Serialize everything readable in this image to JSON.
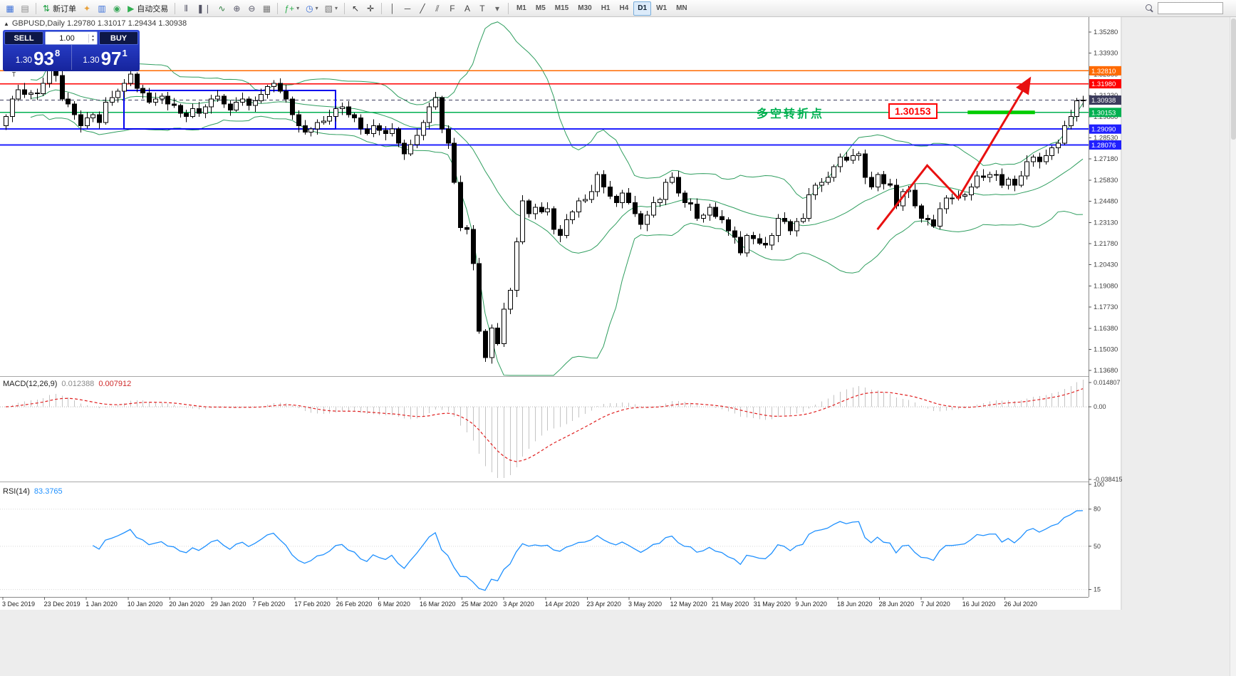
{
  "toolbar": {
    "groups": [
      {
        "items": [
          {
            "name": "new-chart-button",
            "glyph": "▦",
            "color": "#3a6fd8"
          },
          {
            "name": "profiles-button",
            "glyph": "▤",
            "color": "#8a8a8a"
          }
        ]
      },
      {
        "sep": true
      },
      {
        "items": [
          {
            "name": "new-order-button",
            "glyph": "⇅",
            "color": "#1a9e3f",
            "label": "新订单"
          }
        ]
      },
      {
        "items": [
          {
            "name": "navigator-button",
            "glyph": "✦",
            "color": "#e8a13a"
          },
          {
            "name": "terminal-button",
            "glyph": "▥",
            "color": "#3a6fd8"
          },
          {
            "name": "mql5-community-button",
            "glyph": "◉",
            "color": "#3aa85a"
          }
        ]
      },
      {
        "items": [
          {
            "name": "autotrading-button",
            "glyph": "▶",
            "color": "#2fae4f",
            "label": "自动交易"
          }
        ]
      },
      {
        "sep": true
      },
      {
        "items": [
          {
            "name": "bar-chart-button",
            "glyph": "⫴",
            "color": "#556"
          },
          {
            "name": "candlestick-chart-button",
            "glyph": "❚❘",
            "color": "#556"
          },
          {
            "name": "line-chart-button",
            "glyph": "∿",
            "color": "#2f7e3f"
          }
        ]
      },
      {
        "items": [
          {
            "name": "zoom-in-button",
            "glyph": "⊕",
            "color": "#556"
          },
          {
            "name": "zoom-out-button",
            "glyph": "⊖",
            "color": "#556"
          }
        ]
      },
      {
        "items": [
          {
            "name": "tile-windows-button",
            "glyph": "▦",
            "color": "#777"
          }
        ]
      },
      {
        "sep": true
      },
      {
        "items": [
          {
            "name": "indicators-button",
            "glyph": "ƒ+",
            "color": "#2fae4f",
            "dropdown": true
          },
          {
            "name": "periods-button",
            "glyph": "◷",
            "color": "#3a6fd8",
            "dropdown": true
          },
          {
            "name": "templates-button",
            "glyph": "▧",
            "color": "#777",
            "dropdown": true
          }
        ]
      },
      {
        "sep": true
      },
      {
        "items": [
          {
            "name": "cursor-button",
            "glyph": "↖",
            "color": "#333"
          },
          {
            "name": "crosshair-button",
            "glyph": "✛",
            "color": "#333"
          }
        ]
      },
      {
        "sep": true
      },
      {
        "items": [
          {
            "name": "vertical-line-button",
            "glyph": "│",
            "color": "#444"
          },
          {
            "name": "horizontal-line-button",
            "glyph": "─",
            "color": "#444"
          },
          {
            "name": "trendline-button",
            "glyph": "╱",
            "color": "#444"
          },
          {
            "name": "equidistant-channel-button",
            "glyph": "⫽",
            "color": "#444"
          },
          {
            "name": "fibonacci-button",
            "glyph": "F",
            "color": "#444"
          },
          {
            "name": "text-button",
            "glyph": "A",
            "color": "#444"
          },
          {
            "name": "arrow-label-button",
            "glyph": "T",
            "color": "#444"
          },
          {
            "name": "shapes-dropdown-button",
            "glyph": "▾",
            "color": "#666"
          }
        ]
      },
      {
        "sep": true
      },
      {
        "timeframes": true
      }
    ],
    "timeframes": [
      "M1",
      "M5",
      "M15",
      "M30",
      "H1",
      "H4",
      "D1",
      "W1",
      "MN"
    ],
    "active_timeframe": "D1"
  },
  "trade_panel": {
    "sell_label": "SELL",
    "buy_label": "BUY",
    "volume": "1.00",
    "bid": {
      "prefix": "1.30",
      "big": "93",
      "sup": "8"
    },
    "ask": {
      "prefix": "1.30",
      "big": "97",
      "sup": "1"
    }
  },
  "chart": {
    "symbol_label": "GBPUSD,Daily  1.29780 1.31017 1.29434 1.30938",
    "macd_label": "MACD(12,26,9)",
    "macd_value": "0.012388",
    "macd_signal_value": "0.007912",
    "rsi_label": "RSI(14)",
    "rsi_value": "83.3765",
    "annotation_text": "多空转折点",
    "callout_price": "1.30153"
  },
  "chart_data": {
    "type": "candlestick",
    "symbol": "GBPUSD",
    "timeframe": "Daily",
    "ohlc_display": {
      "open": "1.29780",
      "high": "1.31017",
      "low": "1.29434",
      "close": "1.30938"
    },
    "first_open": 1.293,
    "closes": [
      1.299,
      1.31,
      1.316,
      1.313,
      1.314,
      1.3135,
      1.32,
      1.333,
      1.325,
      1.31,
      1.307,
      1.3,
      1.293,
      1.298,
      1.3,
      1.295,
      1.308,
      1.311,
      1.315,
      1.32,
      1.326,
      1.317,
      1.314,
      1.308,
      1.31,
      1.312,
      1.307,
      1.306,
      1.301,
      1.299,
      1.304,
      1.301,
      1.305,
      1.31,
      1.312,
      1.307,
      1.303,
      1.308,
      1.31,
      1.306,
      1.309,
      1.313,
      1.318,
      1.32,
      1.315,
      1.31,
      1.3,
      1.293,
      1.289,
      1.291,
      1.295,
      1.296,
      1.299,
      1.304,
      1.305,
      1.3,
      1.298,
      1.291,
      1.288,
      1.293,
      1.29,
      1.288,
      1.291,
      1.282,
      1.275,
      1.281,
      1.287,
      1.295,
      1.305,
      1.311,
      1.291,
      1.282,
      1.257,
      1.228,
      1.227,
      1.205,
      1.162,
      1.145,
      1.164,
      1.154,
      1.176,
      1.188,
      1.219,
      1.245,
      1.237,
      1.241,
      1.238,
      1.24,
      1.227,
      1.223,
      1.233,
      1.238,
      1.245,
      1.246,
      1.251,
      1.262,
      1.254,
      1.248,
      1.244,
      1.25,
      1.244,
      1.237,
      1.23,
      1.236,
      1.244,
      1.246,
      1.257,
      1.26,
      1.25,
      1.244,
      1.243,
      1.234,
      1.236,
      1.241,
      1.235,
      1.233,
      1.226,
      1.222,
      1.212,
      1.223,
      1.221,
      1.218,
      1.217,
      1.223,
      1.234,
      1.232,
      1.226,
      1.232,
      1.234,
      1.249,
      1.255,
      1.257,
      1.26,
      1.267,
      1.273,
      1.271,
      1.274,
      1.275,
      1.26,
      1.254,
      1.262,
      1.256,
      1.255,
      1.242,
      1.251,
      1.252,
      1.242,
      1.234,
      1.233,
      1.229,
      1.24,
      1.247,
      1.247,
      1.248,
      1.249,
      1.254,
      1.261,
      1.26,
      1.262,
      1.262,
      1.255,
      1.259,
      1.255,
      1.261,
      1.27,
      1.273,
      1.27,
      1.274,
      1.279,
      1.282,
      1.293,
      1.299,
      1.309,
      1.3094
    ],
    "x_labels": [
      "3 Dec 2019",
      "23 Dec 2019",
      "1 Jan 2020",
      "10 Jan 2020",
      "20 Jan 2020",
      "29 Jan 2020",
      "7 Feb 2020",
      "17 Feb 2020",
      "26 Feb 2020",
      "6 Mar 2020",
      "16 Mar 2020",
      "25 Mar 2020",
      "3 Apr 2020",
      "14 Apr 2020",
      "23 Apr 2020",
      "3 May 2020",
      "12 May 2020",
      "21 May 2020",
      "31 May 2020",
      "9 Jun 2020",
      "18 Jun 2020",
      "28 Jun 2020",
      "7 Jul 2020",
      "16 Jul 2020",
      "26 Jul 2020"
    ],
    "y_ticks": [
      "1.35280",
      "1.33930",
      "1.32580",
      "1.31230",
      "1.29880",
      "1.28530",
      "1.27180",
      "1.25830",
      "1.24480",
      "1.23130",
      "1.21780",
      "1.20430",
      "1.19080",
      "1.17730",
      "1.16380",
      "1.15030",
      "1.13680"
    ],
    "price_lines": [
      {
        "price": 1.3281,
        "label": "1.32810",
        "color": "#ff6a00",
        "width": 1.4
      },
      {
        "price": 1.3198,
        "label": "1.31980",
        "color": "#ff0000",
        "width": 1.4
      },
      {
        "price": 1.30938,
        "label": "1.30938",
        "color": "#3c3c5c",
        "width": 1,
        "style": "dashed"
      },
      {
        "price": 1.30153,
        "label": "1.30153",
        "color": "#00b050",
        "width": 1.4
      },
      {
        "price": 1.2909,
        "label": "1.29090",
        "color": "#2020ff",
        "width": 2
      },
      {
        "price": 1.28076,
        "label": "1.28076",
        "color": "#2020ff",
        "width": 2
      }
    ],
    "indicators": [
      {
        "name": "Bollinger Bands",
        "period": 20,
        "deviation": 2,
        "color": "#2f9e5f"
      },
      {
        "name": "MACD",
        "params": [
          12,
          26,
          9
        ],
        "value_main": 0.012388,
        "value_signal": 0.007912,
        "scale_labels": [
          "0.014807",
          "0.00",
          "-0.038415"
        ],
        "hist_color": "#c4c4c4",
        "signal_color": "#e02020"
      },
      {
        "name": "RSI",
        "period": 14,
        "value": 83.3765,
        "scale_labels": [
          100,
          80,
          50,
          15
        ],
        "color": "#1e90ff"
      }
    ],
    "objects": {
      "rectangle": {
        "i0": 19,
        "i1": 53,
        "p0": 1.2909,
        "p1": 1.3155,
        "color": "#0000ee"
      },
      "trend_arrow": {
        "points": [
          [
            140,
            1.2268
          ],
          [
            148,
            1.2677
          ],
          [
            153,
            1.2468
          ],
          [
            164.5,
            1.3232
          ]
        ],
        "color": "#e81010"
      },
      "level_segment": {
        "i0": 154.5,
        "i1": 165.3,
        "price": 1.30153,
        "color": "#00cc00",
        "width": 5
      },
      "tiny_text": {
        "i": 1,
        "price": 1.3245,
        "value": "T",
        "color": "#333333"
      }
    }
  }
}
